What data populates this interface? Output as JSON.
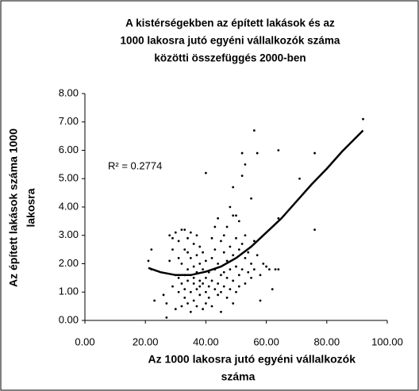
{
  "chart_data": {
    "type": "scatter",
    "title": [
      "A kistérségekben az épített lakások és az",
      "1000 lakosra jutó egyéni vállalkozók száma",
      "közötti összefüggés 2000-ben"
    ],
    "y_label": [
      "Az épített lakások száma 1000",
      "lakosra"
    ],
    "x_label": [
      "Az 1000 lakosra jutó egyéni vállalkozók",
      "száma"
    ],
    "annotation": "R² = 0.2774",
    "color": "#000000",
    "xlim": [
      0,
      100
    ],
    "ylim": [
      0,
      8
    ],
    "xticks": [
      {
        "value": 0,
        "label": "0.00"
      },
      {
        "value": 20,
        "label": "20.00"
      },
      {
        "value": 40,
        "label": "40.00"
      },
      {
        "value": 60,
        "label": "60.00"
      },
      {
        "value": 80,
        "label": "80.00"
      },
      {
        "value": 100,
        "label": "100.00"
      }
    ],
    "yticks": [
      {
        "value": 0,
        "label": "0.00"
      },
      {
        "value": 1,
        "label": "1.00"
      },
      {
        "value": 2,
        "label": "2.00"
      },
      {
        "value": 3,
        "label": "3.00"
      },
      {
        "value": 4,
        "label": "4.00"
      },
      {
        "value": 5,
        "label": "5.00"
      },
      {
        "value": 6,
        "label": "6.00"
      },
      {
        "value": 7,
        "label": "7.00"
      },
      {
        "value": 8,
        "label": "8.00"
      }
    ],
    "x": [
      21,
      22,
      23,
      22,
      26,
      27,
      27,
      28,
      28,
      29,
      29,
      29,
      30,
      30,
      30,
      31,
      31,
      31,
      31,
      32,
      32,
      32,
      32,
      33,
      33,
      33,
      33,
      33,
      34,
      34,
      34,
      34,
      34,
      35,
      35,
      35,
      35,
      35,
      36,
      36,
      36,
      36,
      36,
      37,
      37,
      37,
      37,
      37,
      38,
      38,
      38,
      38,
      38,
      39,
      39,
      39,
      39,
      40,
      40,
      40,
      40,
      40,
      41,
      41,
      41,
      42,
      42,
      42,
      42,
      43,
      43,
      43,
      43,
      44,
      44,
      44,
      44,
      45,
      45,
      45,
      45,
      46,
      46,
      46,
      46,
      47,
      47,
      47,
      47,
      48,
      48,
      48,
      48,
      49,
      49,
      49,
      49,
      49,
      50,
      50,
      50,
      50,
      51,
      51,
      51,
      51,
      52,
      52,
      52,
      52,
      53,
      53,
      53,
      53,
      54,
      54,
      55,
      55,
      55,
      56,
      56,
      56,
      57,
      57,
      58,
      58,
      59,
      60,
      61,
      62,
      63,
      64,
      64,
      64,
      71,
      76,
      76,
      92
    ],
    "values": [
      2.1,
      2.5,
      0.7,
      1.8,
      0.9,
      0.1,
      0.6,
      3.0,
      2.1,
      2.5,
      2.9,
      1.2,
      3.1,
      0.4,
      1.6,
      2.8,
      2.2,
      1.0,
      1.5,
      3.2,
      0.5,
      1.3,
      2.0,
      3.2,
      2.5,
      1.6,
      0.8,
      1.1,
      2.4,
      1.8,
      0.6,
      1.4,
      2.9,
      3.1,
      2.2,
      1.6,
      1.0,
      0.3,
      2.7,
      1.9,
      1.3,
      0.7,
      1.5,
      3.0,
      2.3,
      1.1,
      0.5,
      1.7,
      2.6,
      1.4,
      0.9,
      2.0,
      1.2,
      1.8,
      1.3,
      0.4,
      2.4,
      5.2,
      1.5,
      1.0,
      0.6,
      2.1,
      1.2,
      1.7,
      0.8,
      2.9,
      2.2,
      1.4,
      0.5,
      3.3,
      1.8,
      1.1,
      2.5,
      3.6,
      2.0,
      0.9,
      1.3,
      2.8,
      1.6,
      1.0,
      0.3,
      2.4,
      1.7,
      3.0,
      1.2,
      2.1,
      1.5,
      0.8,
      3.3,
      4.0,
      2.6,
      1.8,
      1.1,
      4.7,
      3.7,
      2.3,
      1.4,
      0.6,
      3.7,
      2.9,
      1.9,
      1.0,
      3.5,
      2.5,
      1.6,
      1.2,
      5.9,
      5.1,
      2.7,
      1.8,
      5.5,
      3.0,
      2.2,
      1.3,
      2.4,
      1.7,
      4.3,
      2.0,
      1.5,
      6.7,
      2.8,
      1.8,
      5.9,
      2.3,
      1.6,
      0.7,
      2.0,
      1.9,
      1.8,
      1.1,
      1.8,
      6.0,
      3.6,
      1.8,
      5.0,
      5.9,
      3.2,
      7.1
    ],
    "trendline": {
      "x": [
        21,
        25,
        30,
        35,
        40,
        45,
        50,
        55,
        60,
        65,
        70,
        75,
        80,
        85,
        92
      ],
      "values": [
        1.85,
        1.7,
        1.6,
        1.6,
        1.72,
        1.9,
        2.2,
        2.6,
        3.1,
        3.6,
        4.2,
        4.8,
        5.35,
        5.95,
        6.7
      ]
    }
  }
}
